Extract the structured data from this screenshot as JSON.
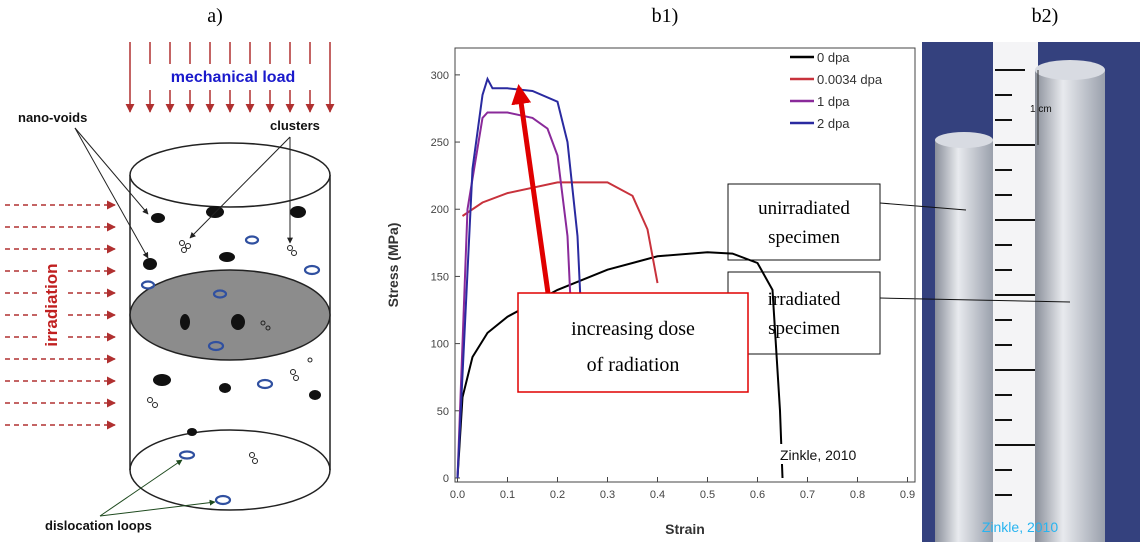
{
  "panel_labels": [
    "a)",
    "b1)",
    "b2)"
  ],
  "diagram": {
    "mechanical_load": "mechanical load",
    "irradiation": "irradiation",
    "nano_voids": "nano-voids",
    "clusters": "clusters",
    "dislocation_loops": "dislocation loops"
  },
  "chart_data": {
    "type": "line",
    "x_label": "Strain",
    "y_label": "Stress (MPa)",
    "xlim": [
      -0.005,
      0.915
    ],
    "ylim": [
      -3,
      320
    ],
    "xticks": [
      {
        "value": 0,
        "label": "0.0"
      },
      0.1,
      0.2,
      0.3,
      0.4,
      0.5,
      0.6,
      0.7,
      0.8,
      0.9
    ],
    "yticks": [
      0,
      50,
      100,
      150,
      200,
      250,
      300
    ],
    "legend": "upper right",
    "series": [
      {
        "name": "0 dpa",
        "color": "#000000",
        "x": [
          0,
          0.01,
          0.03,
          0.06,
          0.1,
          0.15,
          0.2,
          0.3,
          0.4,
          0.5,
          0.55,
          0.6,
          0.63,
          0.645,
          0.65
        ],
        "values": [
          0,
          60,
          90,
          108,
          120,
          130,
          140,
          155,
          165,
          168,
          167,
          160,
          140,
          50,
          0
        ]
      },
      {
        "name": "0.0034 dpa",
        "color": "#c8323c",
        "x": [
          0.01,
          0.05,
          0.1,
          0.2,
          0.3,
          0.35,
          0.38,
          0.4
        ],
        "values": [
          195,
          205,
          212,
          220,
          220,
          210,
          185,
          145
        ]
      },
      {
        "name": "1 dpa",
        "color": "#8a2a9a",
        "x": [
          0,
          0.02,
          0.05,
          0.06,
          0.1,
          0.15,
          0.18,
          0.2,
          0.22,
          0.23
        ],
        "values": [
          0,
          200,
          268,
          272,
          272,
          268,
          260,
          240,
          180,
          100
        ]
      },
      {
        "name": "2 dpa",
        "color": "#2a2aa0",
        "x": [
          0,
          0.03,
          0.05,
          0.06,
          0.07,
          0.1,
          0.15,
          0.2,
          0.22,
          0.24,
          0.25
        ],
        "values": [
          0,
          230,
          285,
          297,
          290,
          290,
          288,
          280,
          250,
          180,
          100
        ]
      }
    ],
    "annotations": {
      "dose": [
        "increasing dose",
        "of radiation"
      ],
      "source": "Zinkle, 2010"
    }
  },
  "photo": {
    "unirradiated": [
      "unirradiated",
      "specimen"
    ],
    "irradiated": [
      "irradiated",
      "specimen"
    ],
    "scale": "1 cm",
    "source": "Zinkle, 2010"
  }
}
